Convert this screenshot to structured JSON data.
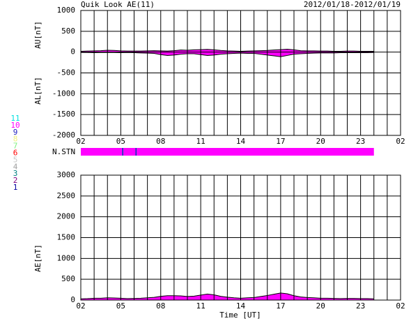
{
  "chart_data": [
    {
      "type": "area",
      "title": "Quik Look AE(11)",
      "subtitle": "2012/01/18-2012/01/19",
      "x": [
        2,
        2.5,
        3,
        3.5,
        4,
        4.5,
        5,
        5.5,
        6,
        6.5,
        7,
        7.5,
        8,
        8.5,
        9,
        9.5,
        10,
        10.5,
        11,
        11.5,
        12,
        12.5,
        13,
        13.5,
        14,
        14.5,
        15,
        15.5,
        16,
        16.5,
        17,
        17.5,
        18,
        18.5,
        19,
        19.5,
        20,
        20.5,
        21,
        21.5,
        22,
        22.5,
        23,
        23.5,
        24
      ],
      "series": [
        {
          "name": "AU[nT]",
          "color": "#ff00ff",
          "values": [
            20,
            25,
            30,
            35,
            45,
            40,
            30,
            25,
            25,
            25,
            30,
            35,
            30,
            25,
            35,
            50,
            45,
            55,
            60,
            65,
            55,
            40,
            30,
            25,
            20,
            25,
            30,
            35,
            40,
            50,
            60,
            70,
            55,
            35,
            30,
            30,
            25,
            25,
            20,
            20,
            25,
            25,
            20,
            20,
            20
          ]
        },
        {
          "name": "AL[nT]",
          "color": "#ff00ff",
          "values": [
            -10,
            -10,
            -15,
            -10,
            -10,
            -10,
            -15,
            -10,
            -15,
            -20,
            -25,
            -30,
            -60,
            -80,
            -70,
            -50,
            -40,
            -40,
            -60,
            -80,
            -70,
            -50,
            -40,
            -30,
            -25,
            -30,
            -30,
            -50,
            -70,
            -90,
            -110,
            -80,
            -50,
            -40,
            -30,
            -25,
            -20,
            -20,
            -20,
            -15,
            -15,
            -15,
            -15,
            -15,
            -10
          ]
        }
      ],
      "xlim": [
        2,
        26
      ],
      "xticks": [
        {
          "value": 2,
          "label": "02"
        },
        {
          "value": 5,
          "label": "05"
        },
        {
          "value": 8,
          "label": "08"
        },
        11,
        14,
        17,
        20,
        23,
        {
          "value": 26,
          "label": "02"
        }
      ],
      "xminorticks": [
        3,
        4,
        6,
        7,
        9,
        10,
        12,
        13,
        15,
        16,
        18,
        19,
        21,
        22,
        24,
        25
      ],
      "ylim": [
        -2000,
        1000
      ],
      "yticks": [
        -2000,
        -1500,
        -1000,
        -500,
        0,
        500,
        1000
      ],
      "grid": true
    },
    {
      "type": "area",
      "xlabel": "Time [UT]",
      "x": [
        2,
        2.5,
        3,
        3.5,
        4,
        4.5,
        5,
        5.5,
        6,
        6.5,
        7,
        7.5,
        8,
        8.5,
        9,
        9.5,
        10,
        10.5,
        11,
        11.5,
        12,
        12.5,
        13,
        13.5,
        14,
        14.5,
        15,
        15.5,
        16,
        16.5,
        17,
        17.5,
        18,
        18.5,
        19,
        19.5,
        20,
        20.5,
        21,
        21.5,
        22,
        22.5,
        23,
        23.5,
        24
      ],
      "series": [
        {
          "name": "AE[nT]",
          "color": "#ff00ff",
          "values": [
            30,
            35,
            45,
            45,
            55,
            50,
            45,
            35,
            40,
            45,
            55,
            65,
            90,
            105,
            105,
            100,
            85,
            95,
            120,
            145,
            125,
            90,
            70,
            55,
            45,
            55,
            60,
            85,
            110,
            140,
            170,
            150,
            105,
            75,
            60,
            55,
            45,
            45,
            40,
            35,
            40,
            40,
            35,
            35,
            30
          ]
        }
      ],
      "xlim": [
        2,
        26
      ],
      "xticks": [
        {
          "value": 2,
          "label": "02"
        },
        {
          "value": 5,
          "label": "05"
        },
        {
          "value": 8,
          "label": "08"
        },
        11,
        14,
        17,
        20,
        23,
        {
          "value": 26,
          "label": "02"
        }
      ],
      "xminorticks": [
        3,
        4,
        6,
        7,
        9,
        10,
        12,
        13,
        15,
        16,
        18,
        19,
        21,
        22,
        24,
        25
      ],
      "ylim": [
        0,
        3000
      ],
      "yticks": [
        0,
        500,
        1000,
        1500,
        2000,
        2500,
        3000
      ],
      "grid": true
    }
  ],
  "stations": {
    "label": "N.STN",
    "segments": [
      {
        "start": 2,
        "end": 5.1,
        "count": 10
      },
      {
        "start": 5.1,
        "end": 5.2,
        "count": 9
      },
      {
        "start": 5.2,
        "end": 6.1,
        "count": 10
      },
      {
        "start": 6.1,
        "end": 6.2,
        "count": 9
      },
      {
        "start": 6.2,
        "end": 24,
        "count": 10
      }
    ],
    "legend": [
      {
        "count": 11,
        "color": "#00e0e0"
      },
      {
        "count": 10,
        "color": "#ff00ff"
      },
      {
        "count": 9,
        "color": "#2020c0"
      },
      {
        "count": 8,
        "color": "#f0f080"
      },
      {
        "count": 7,
        "color": "#80f080"
      },
      {
        "count": 6,
        "color": "#ff0000"
      },
      {
        "count": 5,
        "color": "#c8c8c8"
      },
      {
        "count": 4,
        "color": "#a0a0a0"
      },
      {
        "count": 3,
        "color": "#008080"
      },
      {
        "count": 2,
        "color": "#800080"
      },
      {
        "count": 1,
        "color": "#0000a0"
      }
    ]
  }
}
